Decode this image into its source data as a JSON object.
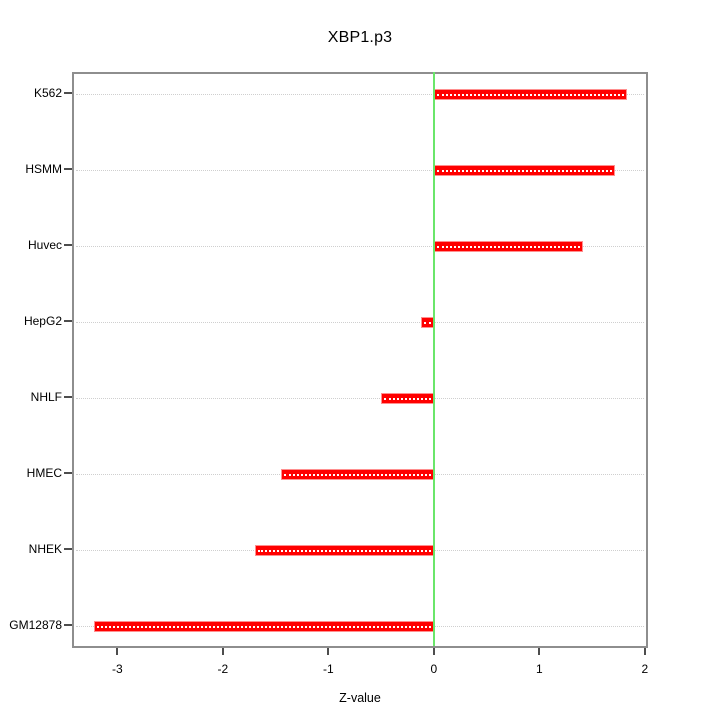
{
  "chart_data": {
    "type": "bar",
    "orientation": "horizontal",
    "title": "XBP1.p3",
    "xlabel": "Z-value",
    "ylabel": "",
    "categories": [
      "K562",
      "HSMM",
      "Huvec",
      "HepG2",
      "NHLF",
      "HMEC",
      "NHEK",
      "GM12878"
    ],
    "values": [
      1.83,
      1.72,
      1.41,
      -0.12,
      -0.5,
      -1.45,
      -1.7,
      -3.22
    ],
    "xlim": [
      -3.43,
      2.03
    ],
    "xticks": [
      "-3",
      "-2",
      "-1",
      "0",
      "1",
      "2"
    ],
    "xtick_values": [
      -3,
      -2,
      -1,
      0,
      1,
      2
    ],
    "zero_reference_line": 0,
    "grid": "horizontal-dotted",
    "legend": "none",
    "colors": {
      "bar": "#ff0000",
      "bar_edge": "#ff8f8f",
      "bar_inner_dots": "#ffffff",
      "zero_line": "#6ae66a",
      "grid": "#cfcfcf",
      "axis_box": "#8e8e8e",
      "tick": "#4d4d4d",
      "text": "#000000",
      "background": "#ffffff"
    }
  }
}
